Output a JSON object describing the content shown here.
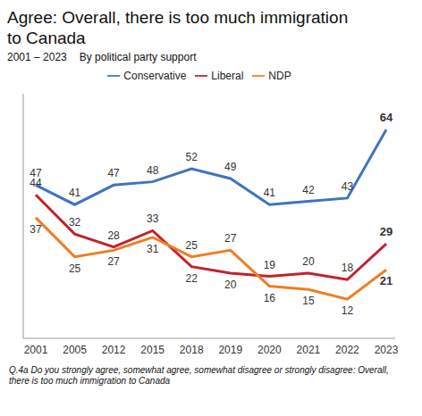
{
  "chart_data": {
    "type": "line",
    "title": "Agree: Overall, there is too much immigration to Canada",
    "subtitle": [
      "2001 – 2023",
      "By political party support"
    ],
    "footnote": "Q.4a  Do you strongly agree, somewhat agree, somewhat disagree or strongly disagree: Overall, there is too much immigration to Canada",
    "categories": [
      "2001",
      "2005",
      "2012",
      "2015",
      "2018",
      "2019",
      "2020",
      "2021",
      "2022",
      "2023"
    ],
    "series": [
      {
        "name": "Conservative",
        "color": "#3f73c0",
        "values": [
          47,
          41,
          47,
          48,
          52,
          49,
          41,
          42,
          43,
          64
        ]
      },
      {
        "name": "Liberal",
        "color": "#c0232c",
        "values": [
          44,
          32,
          28,
          33,
          22,
          20,
          19,
          20,
          18,
          29
        ]
      },
      {
        "name": "NDP",
        "color": "#f07d22",
        "values": [
          37,
          25,
          27,
          31,
          25,
          27,
          16,
          15,
          12,
          21
        ]
      }
    ],
    "ylim": [
      0,
      75
    ],
    "yticks": [],
    "grid": false,
    "legend": "top",
    "data_labels": true,
    "tick_labels": "x"
  }
}
